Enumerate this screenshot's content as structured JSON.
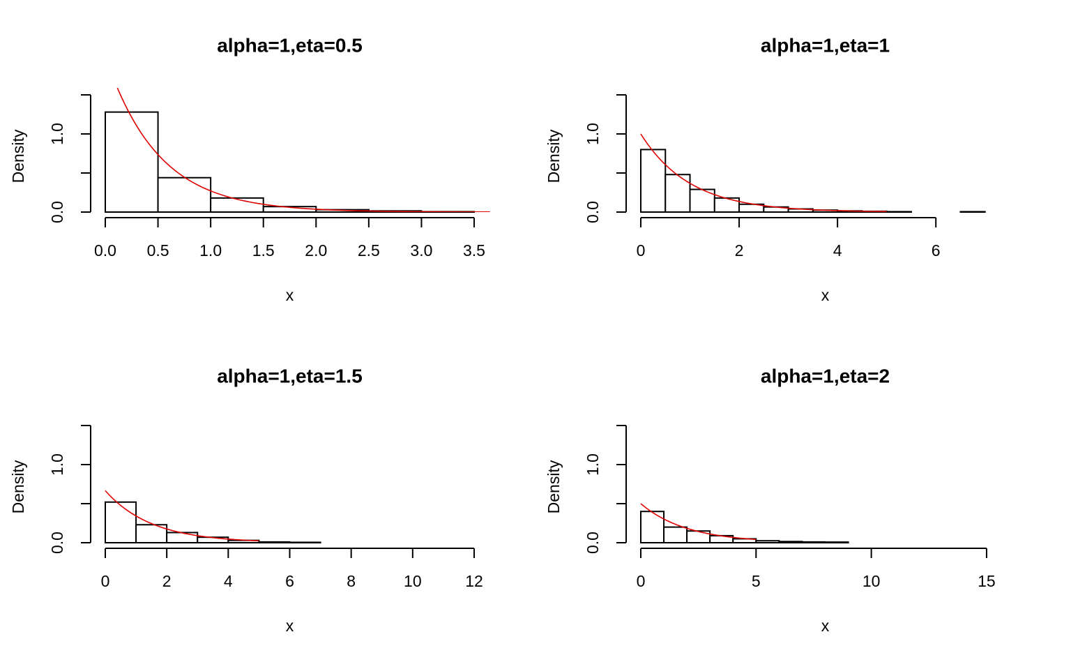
{
  "colors": {
    "background": "#ffffff",
    "bars_fill": "#ffffff",
    "bars_stroke": "#000000",
    "density_curve": "#e00000"
  },
  "chart_data": [
    {
      "type": "bar",
      "title": "alpha=1,eta=0.5",
      "xlabel": "x",
      "ylabel": "Density",
      "xlim": [
        0,
        3.5
      ],
      "ylim": [
        0,
        1.5
      ],
      "x_ticks": [
        0.0,
        0.5,
        1.0,
        1.5,
        2.0,
        2.5,
        3.0,
        3.5
      ],
      "x_tick_labels": [
        "0.0",
        "0.5",
        "1.0",
        "1.5",
        "2.0",
        "2.5",
        "3.0",
        "3.5"
      ],
      "y_ticks": [
        0,
        0.5,
        1.0,
        1.5
      ],
      "y_tick_labels": [
        "0.0",
        "",
        "1.0",
        ""
      ],
      "bins": [
        {
          "x0": 0.0,
          "x1": 0.5,
          "density": 1.28
        },
        {
          "x0": 0.5,
          "x1": 1.0,
          "density": 0.44
        },
        {
          "x0": 1.0,
          "x1": 1.5,
          "density": 0.18
        },
        {
          "x0": 1.5,
          "x1": 2.0,
          "density": 0.07
        },
        {
          "x0": 2.0,
          "x1": 2.5,
          "density": 0.03
        },
        {
          "x0": 2.5,
          "x1": 3.0,
          "density": 0.015
        },
        {
          "x0": 3.0,
          "x1": 3.5,
          "density": 0.005
        }
      ],
      "density_curve": {
        "rate": 2,
        "x_from": 0.0,
        "x_to": 3.65
      }
    },
    {
      "type": "bar",
      "title": "alpha=1,eta=1",
      "xlabel": "x",
      "ylabel": "Density",
      "xlim": [
        0,
        7.5
      ],
      "ylim": [
        0,
        1.5
      ],
      "x_ticks": [
        0,
        2,
        4,
        6
      ],
      "x_tick_labels": [
        "0",
        "2",
        "4",
        "6"
      ],
      "y_ticks": [
        0,
        0.5,
        1.0,
        1.5
      ],
      "y_tick_labels": [
        "0.0",
        "",
        "1.0",
        ""
      ],
      "bins": [
        {
          "x0": 0.0,
          "x1": 0.5,
          "density": 0.8
        },
        {
          "x0": 0.5,
          "x1": 1.0,
          "density": 0.48
        },
        {
          "x0": 1.0,
          "x1": 1.5,
          "density": 0.29
        },
        {
          "x0": 1.5,
          "x1": 2.0,
          "density": 0.18
        },
        {
          "x0": 2.0,
          "x1": 2.5,
          "density": 0.1
        },
        {
          "x0": 2.5,
          "x1": 3.0,
          "density": 0.065
        },
        {
          "x0": 3.0,
          "x1": 3.5,
          "density": 0.04
        },
        {
          "x0": 3.5,
          "x1": 4.0,
          "density": 0.025
        },
        {
          "x0": 4.0,
          "x1": 4.5,
          "density": 0.015
        },
        {
          "x0": 4.5,
          "x1": 5.0,
          "density": 0.01
        },
        {
          "x0": 5.0,
          "x1": 5.5,
          "density": 0.005
        },
        {
          "x0": 5.5,
          "x1": 6.0,
          "density": 0.0
        },
        {
          "x0": 6.0,
          "x1": 6.5,
          "density": 0.0
        },
        {
          "x0": 6.5,
          "x1": 7.0,
          "density": 0.005
        }
      ],
      "density_curve": {
        "rate": 1,
        "x_from": 0.0,
        "x_to": 5.0
      }
    },
    {
      "type": "bar",
      "title": "alpha=1,eta=1.5",
      "xlabel": "x",
      "ylabel": "Density",
      "xlim": [
        0,
        12
      ],
      "ylim": [
        0,
        1.5
      ],
      "x_ticks": [
        0,
        2,
        4,
        6,
        8,
        10,
        12
      ],
      "x_tick_labels": [
        "0",
        "2",
        "4",
        "6",
        "8",
        "10",
        "12"
      ],
      "y_ticks": [
        0,
        0.5,
        1.0,
        1.5
      ],
      "y_tick_labels": [
        "0.0",
        "",
        "1.0",
        ""
      ],
      "bins": [
        {
          "x0": 0,
          "x1": 1,
          "density": 0.52
        },
        {
          "x0": 1,
          "x1": 2,
          "density": 0.23
        },
        {
          "x0": 2,
          "x1": 3,
          "density": 0.13
        },
        {
          "x0": 3,
          "x1": 4,
          "density": 0.07
        },
        {
          "x0": 4,
          "x1": 5,
          "density": 0.03
        },
        {
          "x0": 5,
          "x1": 6,
          "density": 0.01
        },
        {
          "x0": 6,
          "x1": 7,
          "density": 0.005
        },
        {
          "x0": 7,
          "x1": 8,
          "density": 0.0
        },
        {
          "x0": 8,
          "x1": 9,
          "density": 0.0
        },
        {
          "x0": 9,
          "x1": 10,
          "density": 0.0
        },
        {
          "x0": 10,
          "x1": 11,
          "density": 0.0
        },
        {
          "x0": 11,
          "x1": 12,
          "density": 0.0
        }
      ],
      "density_curve": {
        "rate": 0.6667,
        "x_from": 0.0,
        "x_to": 5.0
      }
    },
    {
      "type": "bar",
      "title": "alpha=1,eta=2",
      "xlabel": "x",
      "ylabel": "Density",
      "xlim": [
        0,
        16
      ],
      "ylim": [
        0,
        1.5
      ],
      "x_ticks": [
        0,
        5,
        10,
        15
      ],
      "x_tick_labels": [
        "0",
        "5",
        "10",
        "15"
      ],
      "y_ticks": [
        0,
        0.5,
        1.0,
        1.5
      ],
      "y_tick_labels": [
        "0.0",
        "",
        "1.0",
        ""
      ],
      "bins": [
        {
          "x0": 0,
          "x1": 1,
          "density": 0.4
        },
        {
          "x0": 1,
          "x1": 2,
          "density": 0.2
        },
        {
          "x0": 2,
          "x1": 3,
          "density": 0.15
        },
        {
          "x0": 3,
          "x1": 4,
          "density": 0.09
        },
        {
          "x0": 4,
          "x1": 5,
          "density": 0.05
        },
        {
          "x0": 5,
          "x1": 6,
          "density": 0.025
        },
        {
          "x0": 6,
          "x1": 7,
          "density": 0.015
        },
        {
          "x0": 7,
          "x1": 8,
          "density": 0.01
        },
        {
          "x0": 8,
          "x1": 9,
          "density": 0.008
        },
        {
          "x0": 9,
          "x1": 10,
          "density": 0.0
        },
        {
          "x0": 10,
          "x1": 11,
          "density": 0.0
        },
        {
          "x0": 11,
          "x1": 12,
          "density": 0.0
        },
        {
          "x0": 12,
          "x1": 13,
          "density": 0.0
        },
        {
          "x0": 13,
          "x1": 14,
          "density": 0.0
        },
        {
          "x0": 14,
          "x1": 15,
          "density": 0.0
        },
        {
          "x0": 15,
          "x1": 16,
          "density": 0.0
        }
      ],
      "density_curve": {
        "rate": 0.5,
        "x_from": 0.0,
        "x_to": 5.0
      }
    }
  ]
}
